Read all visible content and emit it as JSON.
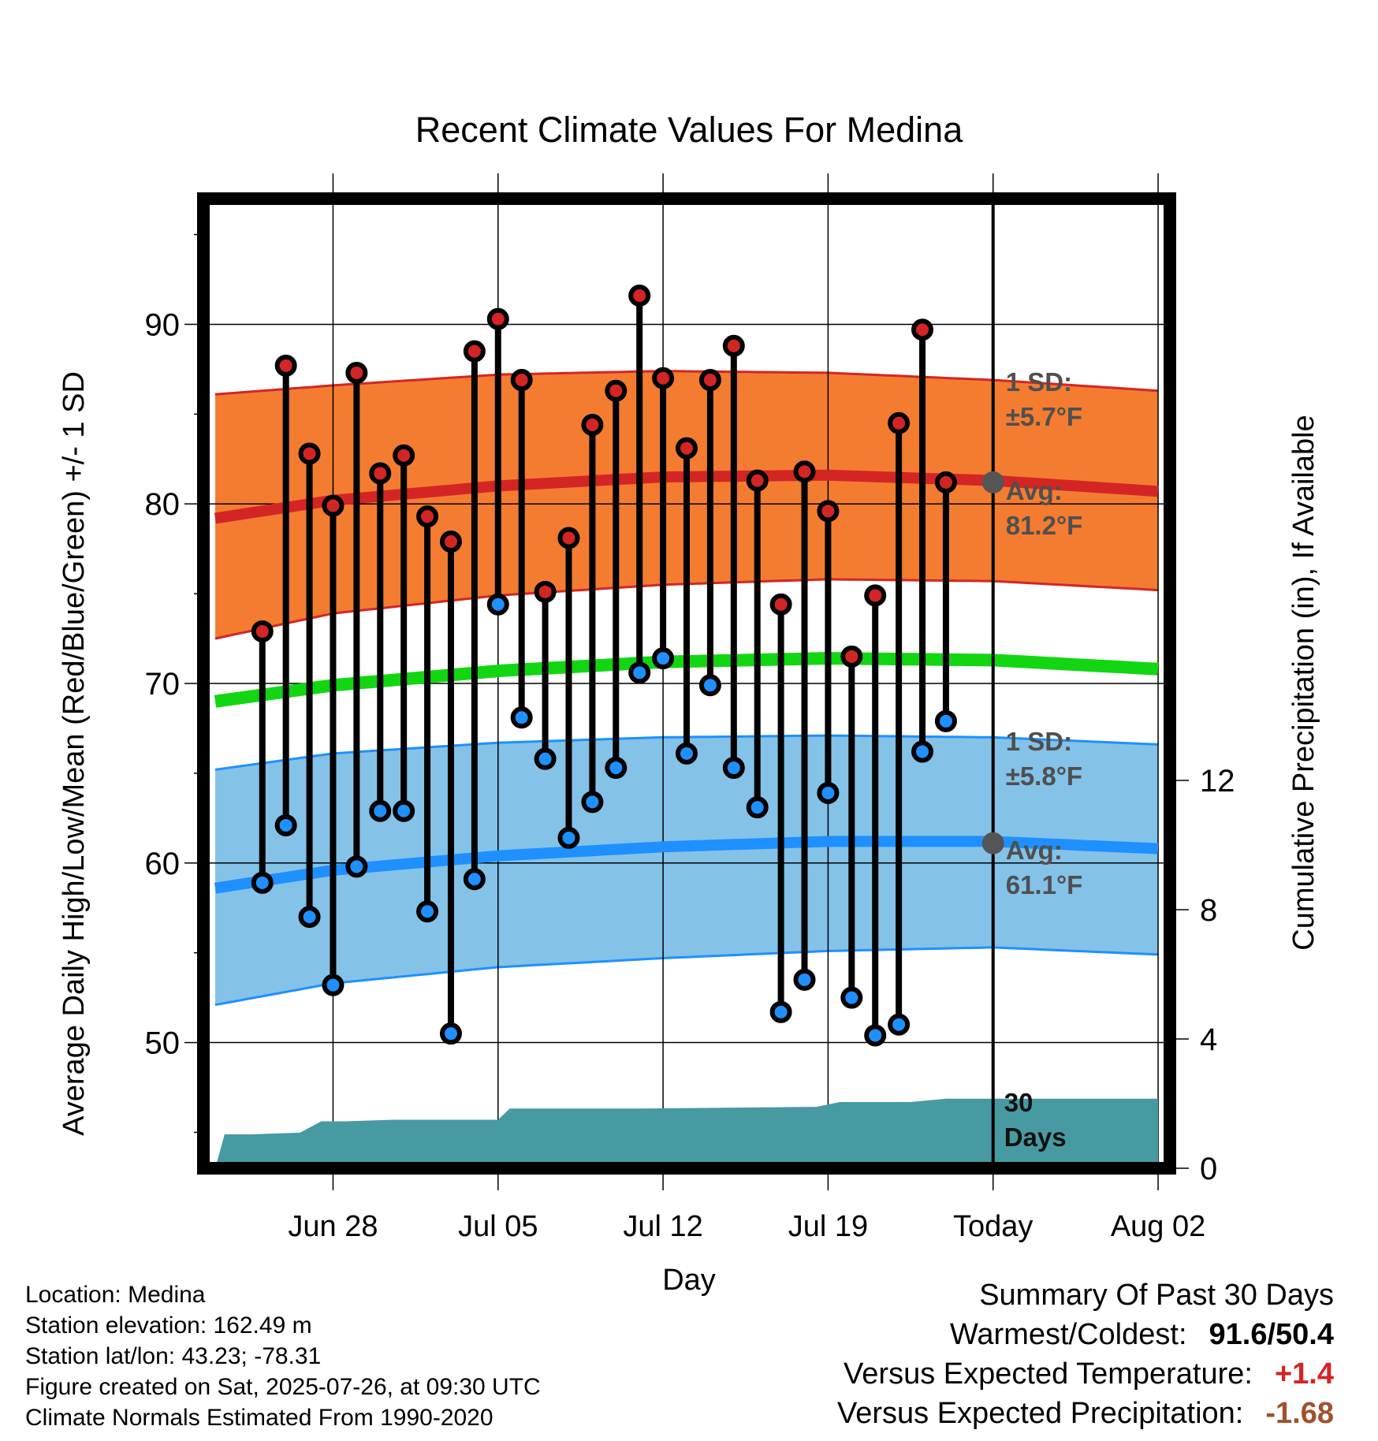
{
  "chart_data": {
    "type": "line",
    "title": "Recent Climate Values For Medina",
    "xlabel": "Day",
    "ylabel": "Average Daily High/Low/Mean (Red/Blue/Green) +/- 1 SD",
    "y2label": "Cumulative Precipitation (in), If Available",
    "ylim": [
      43,
      97
    ],
    "y2lim": [
      0,
      30
    ],
    "xlim": [
      -33.5,
      7.5
    ],
    "x_units": "days relative to today (Jul 26)",
    "x_ticks": [
      {
        "label": "Jun 28",
        "day": -28
      },
      {
        "label": "Jul 05",
        "day": -21
      },
      {
        "label": "Jul 12",
        "day": -14
      },
      {
        "label": "Jul 19",
        "day": -7
      },
      {
        "label": "Today",
        "day": 0
      },
      {
        "label": "Aug 02",
        "day": 7
      }
    ],
    "y_ticks": [
      50,
      60,
      70,
      80,
      90
    ],
    "y2_ticks": [
      0,
      4,
      8,
      12
    ],
    "grid": true,
    "normals_x": [
      -33,
      -28,
      -21,
      -14,
      -7,
      0,
      7
    ],
    "normal_high": [
      79.2,
      80.2,
      81.0,
      81.5,
      81.6,
      81.3,
      80.7
    ],
    "normal_high_sd_upper": [
      86.1,
      86.6,
      87.2,
      87.4,
      87.3,
      86.9,
      86.3
    ],
    "normal_high_sd_lower": [
      72.5,
      73.9,
      74.9,
      75.5,
      75.8,
      75.7,
      75.2
    ],
    "normal_low": [
      58.6,
      59.6,
      60.4,
      60.9,
      61.2,
      61.2,
      60.8
    ],
    "normal_low_sd_upper": [
      65.2,
      66.1,
      66.7,
      67.0,
      67.1,
      67.0,
      66.6
    ],
    "normal_low_sd_lower": [
      52.1,
      53.3,
      54.2,
      54.7,
      55.1,
      55.3,
      54.9
    ],
    "normal_mean": [
      69.0,
      69.9,
      70.7,
      71.2,
      71.4,
      71.3,
      70.8
    ],
    "days": [
      -32,
      -31,
      -30,
      -29,
      -28,
      -27,
      -26,
      -25,
      -24,
      -23,
      -22,
      -21,
      -20,
      -19,
      -18,
      -17,
      -16,
      -15,
      -14,
      -13,
      -12,
      -11,
      -10,
      -9,
      -8,
      -7,
      -6,
      -5,
      -4,
      -3,
      -2,
      -1
    ],
    "highs": [
      72.9,
      87.7,
      82.8,
      79.9,
      87.3,
      81.7,
      82.7,
      79.3,
      77.9,
      88.5,
      90.3,
      86.9,
      75.1,
      78.1,
      84.4,
      86.3,
      91.6,
      87.0,
      83.1,
      86.9,
      88.8,
      81.3,
      74.4,
      81.8,
      79.6,
      71.5,
      74.9,
      84.5,
      89.7,
      81.2
    ],
    "lows": [
      58.9,
      62.1,
      57.0,
      53.2,
      59.8,
      62.9,
      62.9,
      57.3,
      50.5,
      59.1,
      74.4,
      68.1,
      65.8,
      61.4,
      63.4,
      65.3,
      70.6,
      71.4,
      66.1,
      69.9,
      65.3,
      63.1,
      51.7,
      53.5,
      63.9,
      52.5,
      50.4,
      51.0,
      66.2,
      67.9
    ],
    "obs_days": [
      -31,
      -30,
      -29,
      -28,
      -27,
      -26,
      -25,
      -24,
      -23,
      -22,
      -21,
      -20,
      -19,
      -18,
      -17,
      -16,
      -15,
      -14,
      -13,
      -12,
      -11,
      -10,
      -9,
      -8,
      -7,
      -6,
      -5,
      -4,
      -3,
      -2
    ],
    "precip_cumulative": {
      "days": [
        -33,
        -32.6,
        -31.5,
        -29.4,
        -28.5,
        -27.5,
        -25.5,
        -22.5,
        -22.0,
        -21.0,
        -20.5,
        -19.0,
        -15.0,
        -7.5,
        -6.5,
        -3.5,
        -2.0,
        7.0
      ],
      "values": [
        0.0,
        1.05,
        1.05,
        1.1,
        1.45,
        1.45,
        1.5,
        1.5,
        1.5,
        1.5,
        1.85,
        1.85,
        1.85,
        1.9,
        2.05,
        2.05,
        2.15,
        2.15
      ]
    },
    "annotations": {
      "high_sd": "1 SD:",
      "high_sd_val": "±5.7°F",
      "high_avg": "Avg:",
      "high_avg_val": "81.2°F",
      "low_sd": "1 SD:",
      "low_sd_val": "±5.8°F",
      "low_avg": "Avg:",
      "low_avg_val": "61.1°F",
      "period_num": "30",
      "period_word": "Days"
    },
    "colors": {
      "high_band": "#f47c30",
      "high_line": "#d42525",
      "low_band": "#84c2e8",
      "low_line": "#1e90ff",
      "mean_line": "#13d613",
      "precip": "#489aa2",
      "high_dot": "#d42525",
      "low_dot": "#1e90ff",
      "annotation": "#4f4f4f"
    }
  },
  "info": {
    "location": "Location: Medina",
    "elevation": "Station elevation: 162.49 m",
    "latlon": "Station lat/lon: 43.23; -78.31",
    "created": "Figure created on Sat, 2025-07-26, at 09:30 UTC",
    "normals": "Climate Normals Estimated From 1990-2020"
  },
  "summary": {
    "heading": "Summary Of Past 30 Days",
    "warm_cold_label": "Warmest/Coldest:",
    "warm_cold_value": "91.6/50.4",
    "temp_label": "Versus Expected Temperature:",
    "temp_value": "+1.4",
    "temp_color": "#d42525",
    "precip_label": "Versus Expected Precipitation:",
    "precip_value": "-1.68",
    "precip_color": "#a0522d"
  }
}
